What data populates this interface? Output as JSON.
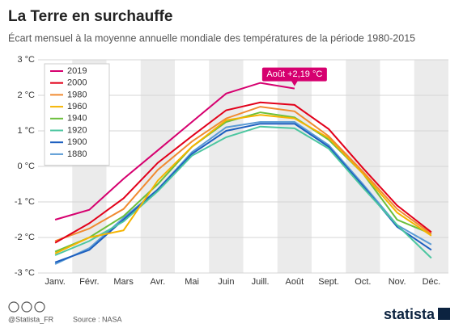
{
  "chart_data": {
    "type": "line",
    "title": "La Terre en surchauffe",
    "subtitle": "Écart mensuel à la moyenne annuelle mondiale des températures de la période 1980-2015",
    "categories": [
      "Janv.",
      "Févr.",
      "Mars",
      "Avr.",
      "Mai",
      "Juin",
      "Juill.",
      "Août",
      "Sept.",
      "Oct.",
      "Nov.",
      "Déc."
    ],
    "ylim": [
      -3,
      3
    ],
    "yticks": [
      {
        "value": 3,
        "label": "3 °C"
      },
      {
        "value": 2,
        "label": "2 °C"
      },
      {
        "value": 1,
        "label": "1 °C"
      },
      {
        "value": 0,
        "label": "0 °C"
      },
      {
        "value": -1,
        "label": "-1 °C"
      },
      {
        "value": -2,
        "label": "-2 °C"
      },
      {
        "value": -3,
        "label": "-3 °C"
      }
    ],
    "grid": true,
    "legend": "top-left",
    "series": [
      {
        "name": "2019",
        "color": "#d6006f",
        "values": [
          -1.5,
          -1.22,
          -0.35,
          0.45,
          1.25,
          2.05,
          2.35,
          2.19,
          null,
          null,
          null,
          null
        ]
      },
      {
        "name": "2000",
        "color": "#e2001a",
        "values": [
          -2.15,
          -1.6,
          -0.9,
          0.1,
          0.85,
          1.58,
          1.8,
          1.73,
          1.05,
          -0.05,
          -1.1,
          -1.85
        ]
      },
      {
        "name": "1980",
        "color": "#f08a30",
        "values": [
          -2.1,
          -1.75,
          -1.2,
          -0.1,
          0.7,
          1.35,
          1.68,
          1.55,
          0.85,
          -0.15,
          -1.2,
          -1.9
        ]
      },
      {
        "name": "1960",
        "color": "#f5b400",
        "values": [
          -2.45,
          -2.0,
          -1.8,
          -0.4,
          0.55,
          1.3,
          1.45,
          1.35,
          0.8,
          -0.2,
          -1.3,
          -1.95
        ]
      },
      {
        "name": "1940",
        "color": "#6cbf3c",
        "values": [
          -2.4,
          -2.0,
          -1.4,
          -0.5,
          0.55,
          1.25,
          1.52,
          1.38,
          0.75,
          -0.2,
          -1.5,
          -1.9
        ]
      },
      {
        "name": "1920",
        "color": "#4cc6a0",
        "values": [
          -2.5,
          -2.1,
          -1.55,
          -0.7,
          0.3,
          0.82,
          1.12,
          1.07,
          0.5,
          -0.6,
          -1.65,
          -2.58
        ]
      },
      {
        "name": "1900",
        "color": "#1d5fbf",
        "values": [
          -2.7,
          -2.35,
          -1.5,
          -0.65,
          0.35,
          1.0,
          1.2,
          1.2,
          0.55,
          -0.55,
          -1.7,
          -2.35
        ]
      },
      {
        "name": "1880",
        "color": "#5b9bd5",
        "values": [
          -2.75,
          -2.3,
          -1.45,
          -0.65,
          0.4,
          1.1,
          1.25,
          1.25,
          0.6,
          -0.5,
          -1.65,
          -2.2
        ]
      }
    ],
    "annotation": {
      "text": "Août +2,19 °C",
      "series": 0,
      "index": 7
    },
    "footer": {
      "handle": "@Statista_FR",
      "source": "Source : NASA",
      "brand": "statista"
    }
  }
}
